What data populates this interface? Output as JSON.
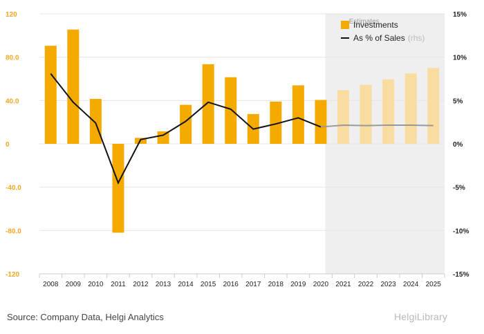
{
  "chart_data": {
    "type": "bar",
    "categories": [
      "2008",
      "2009",
      "2010",
      "2011",
      "2012",
      "2013",
      "2014",
      "2015",
      "2016",
      "2017",
      "2018",
      "2019",
      "2020",
      "2021",
      "2022",
      "2023",
      "2024",
      "2025"
    ],
    "series": [
      {
        "name": "Investments",
        "axis": "left",
        "values": [
          90.5,
          105.5,
          41.5,
          -82.0,
          5.5,
          11.5,
          36.0,
          73.5,
          61.5,
          27.5,
          39.0,
          54.0,
          40.5,
          49.5,
          54.5,
          59.5,
          65.0,
          70.0
        ],
        "color": "#F5AA00",
        "estimate_color": "#F8DCA0"
      },
      {
        "name": "As % of Sales",
        "name_suffix": "(rhs)",
        "axis": "right",
        "values": [
          8.1,
          4.8,
          2.4,
          -4.5,
          0.5,
          1.0,
          2.6,
          4.8,
          4.0,
          1.7,
          2.3,
          3.0,
          1.95,
          2.15,
          2.1,
          2.15,
          2.15,
          2.1
        ],
        "color": "#111111",
        "estimate_color": "#999999"
      }
    ],
    "left_axis": {
      "ylim": [
        -120,
        120
      ],
      "ticks": [
        "120",
        "80.0",
        "40.0",
        "0",
        "-40.0",
        "-80.0",
        "-120"
      ]
    },
    "right_axis": {
      "ylim": [
        -15,
        15
      ],
      "ticks": [
        "15%",
        "10%",
        "5%",
        "0%",
        "-5%",
        "-10%",
        "-15%"
      ]
    },
    "estimates_label": "Estimates",
    "estimates_from": "2021",
    "legend_position": "top-right",
    "grid": true
  },
  "footer": {
    "source": "Source: Company Data, Helgi Analytics",
    "logo_text": "HelgiLibrary"
  }
}
